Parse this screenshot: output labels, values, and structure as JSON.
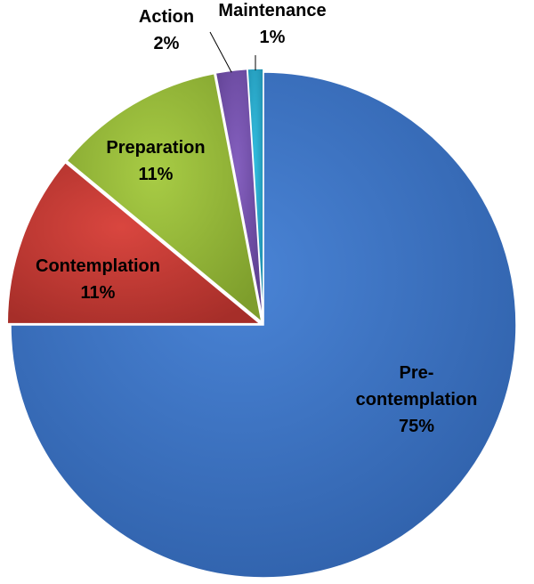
{
  "chart_data": {
    "type": "pie",
    "title": "",
    "start_angle_deg": 0,
    "direction": "clockwise",
    "slices": [
      {
        "name": "Pre-contemplation",
        "label_lines": [
          "Pre-",
          "contemplation",
          "75%"
        ],
        "value": 75,
        "color": "#4A84D6",
        "dark": "#2E5FA8",
        "leader": false,
        "exploded": false
      },
      {
        "name": "Contemplation",
        "label_lines": [
          "Contemplation",
          "11%"
        ],
        "value": 11,
        "color": "#D9463F",
        "dark": "#A62E29",
        "leader": false,
        "exploded": true
      },
      {
        "name": "Preparation",
        "label_lines": [
          "Preparation",
          "11%"
        ],
        "value": 11,
        "color": "#A8CC45",
        "dark": "#7E9E2C",
        "leader": false,
        "exploded": true
      },
      {
        "name": "Action",
        "label_lines": [
          "Action",
          "2%"
        ],
        "value": 2,
        "color": "#8560BF",
        "dark": "#5C3E8E",
        "leader": true,
        "exploded": true
      },
      {
        "name": "Maintenance",
        "label_lines": [
          "Maintenance",
          "1%"
        ],
        "value": 1,
        "color": "#33BEE0",
        "dark": "#1F8CAB",
        "leader": true,
        "exploded": true
      }
    ]
  }
}
